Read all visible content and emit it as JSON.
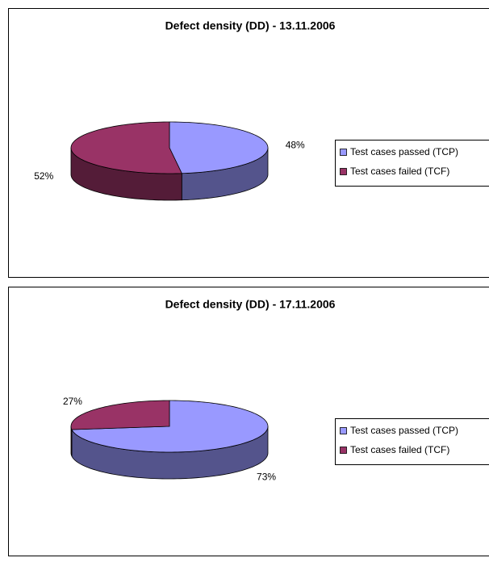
{
  "chart_data": [
    {
      "type": "pie",
      "title": "Defect density (DD) - 13.11.2006",
      "categories": [
        "Test cases passed (TCP)",
        "Test cases failed (TCF)"
      ],
      "values": [
        48,
        52
      ],
      "value_labels": [
        "48%",
        "52%"
      ],
      "colors": [
        "#9999ff",
        "#993366"
      ],
      "legend": "right"
    },
    {
      "type": "pie",
      "title": "Defect density (DD) - 17.11.2006",
      "categories": [
        "Test cases passed (TCP)",
        "Test cases failed (TCF)"
      ],
      "values": [
        73,
        27
      ],
      "value_labels": [
        "73%",
        "27%"
      ],
      "colors": [
        "#9999ff",
        "#993366"
      ],
      "legend": "right"
    }
  ]
}
